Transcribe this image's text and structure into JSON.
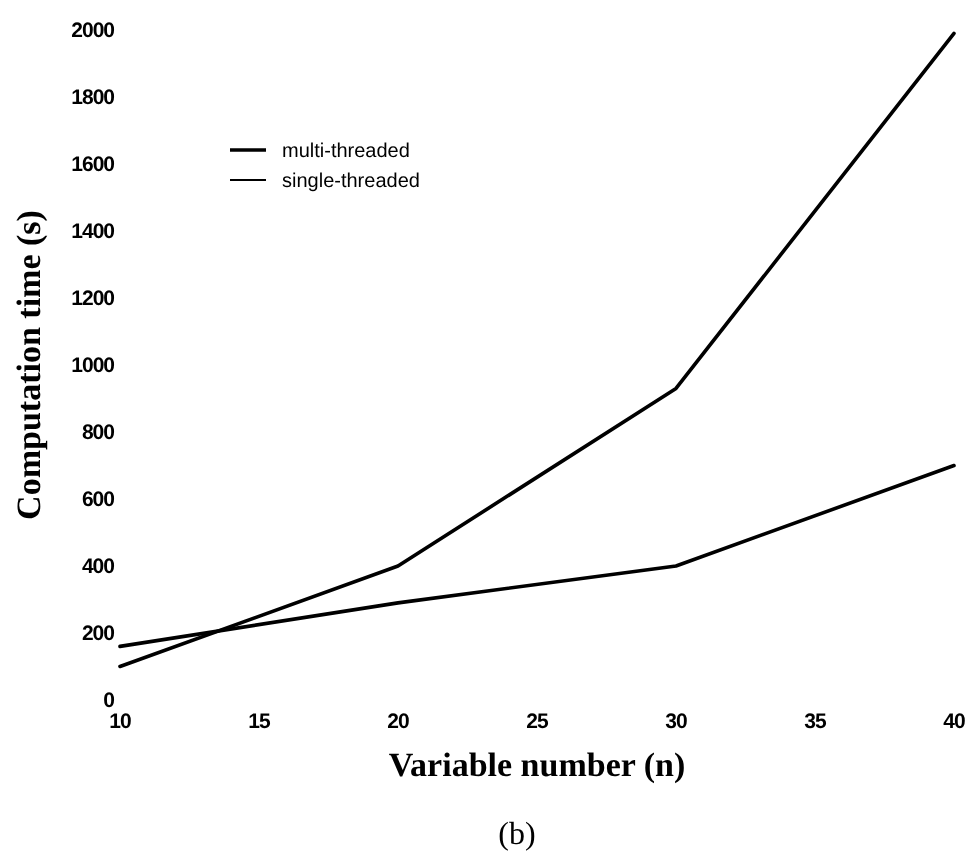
{
  "chart_data": {
    "type": "line",
    "xlabel": "Variable number (n)",
    "ylabel": "Computation time (s)",
    "annotations": [
      "(b)"
    ],
    "x": [
      10,
      20,
      30,
      40
    ],
    "series": [
      {
        "name": "multi-threaded",
        "color": "#000000",
        "values": [
          160,
          290,
          400,
          700
        ]
      },
      {
        "name": "single-threaded",
        "color": "#000000",
        "values": [
          100,
          400,
          930,
          1990
        ]
      }
    ],
    "xlim": [
      10,
      40
    ],
    "xticks": [
      10,
      15,
      20,
      25,
      30,
      35,
      40
    ],
    "ylim": [
      0,
      2000
    ],
    "yticks": [
      0,
      200,
      400,
      600,
      800,
      1000,
      1200,
      1400,
      1600,
      1800,
      2000
    ],
    "grid": false,
    "legend": "top left",
    "marker": "none",
    "line_style": "solid"
  }
}
